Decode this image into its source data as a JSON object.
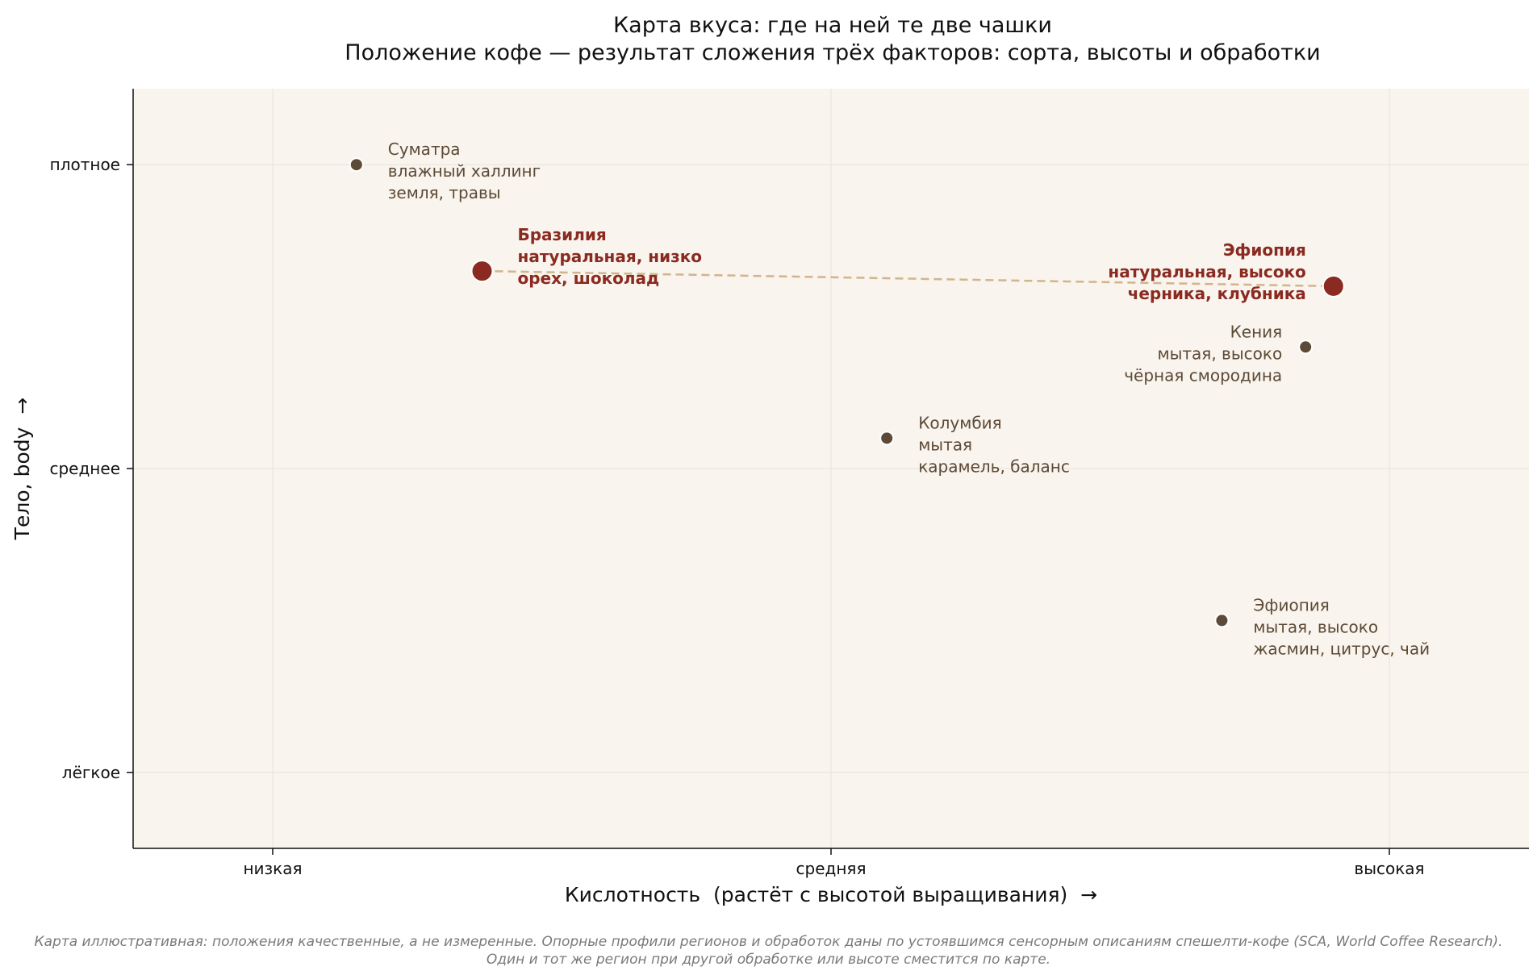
{
  "chart_data": {
    "type": "scatter",
    "title": "Карта вкуса: где на ней те две чашки",
    "subtitle": "Положение кофе — результат сложения трёх факторов: сорта, высоты и обработки",
    "xlabel": "Кислотность  (растёт с высотой выращивания)  →",
    "ylabel": "Тело, body  →",
    "xlim": [
      0.75,
      3.25
    ],
    "ylim": [
      0.75,
      3.25
    ],
    "x_ticks": [
      {
        "value": 1,
        "label": "низкая"
      },
      {
        "value": 2,
        "label": "средняя"
      },
      {
        "value": 3,
        "label": "высокая"
      }
    ],
    "y_ticks": [
      {
        "value": 1,
        "label": "лёгкое"
      },
      {
        "value": 2,
        "label": "среднее"
      },
      {
        "value": 3,
        "label": "плотное"
      }
    ],
    "grid": true,
    "points": [
      {
        "x": 1.15,
        "y": 3.0,
        "highlight": false,
        "label_side": "right",
        "lines": [
          "Суматра",
          "влажный халлинг",
          "земля, травы"
        ]
      },
      {
        "x": 1.375,
        "y": 2.65,
        "highlight": true,
        "label_side": "right",
        "lines": [
          "Бразилия",
          "натуральная, низко",
          "орех, шоколад"
        ]
      },
      {
        "x": 2.1,
        "y": 2.1,
        "highlight": false,
        "label_side": "right",
        "lines": [
          "Колумбия",
          "мытая",
          "карамель, баланс"
        ]
      },
      {
        "x": 2.7,
        "y": 1.5,
        "highlight": false,
        "label_side": "right",
        "lines": [
          "Эфиопия",
          "мытая, высоко",
          "жасмин, цитрус, чай"
        ]
      },
      {
        "x": 2.85,
        "y": 2.4,
        "highlight": false,
        "label_side": "left",
        "lines": [
          "Кения",
          "мытая, высоко",
          "чёрная смородина"
        ]
      },
      {
        "x": 2.9,
        "y": 2.6,
        "highlight": true,
        "label_side": "left",
        "lines": [
          "Эфиопия",
          "натуральная, высоко",
          "черника, клубника"
        ]
      }
    ],
    "connector": {
      "from": [
        1.375,
        2.65
      ],
      "to": [
        2.9,
        2.6
      ],
      "style": "dashed"
    }
  },
  "footnote": "Карта иллюстративная: положения качественные, а не измеренные. Опорные профили регионов и обработок даны по устоявшимся сенсорным описаниям спешелти-кофе (SCA, World Coffee Research). Один и тот же регион при другой обработке или высоте сместится по карте.",
  "colors": {
    "plot_bg": "#f9f4ee",
    "point": "#5c4a36",
    "highlight": "#8a2a20",
    "connector": "#d2b48c",
    "grid": "#e6e2dc"
  }
}
